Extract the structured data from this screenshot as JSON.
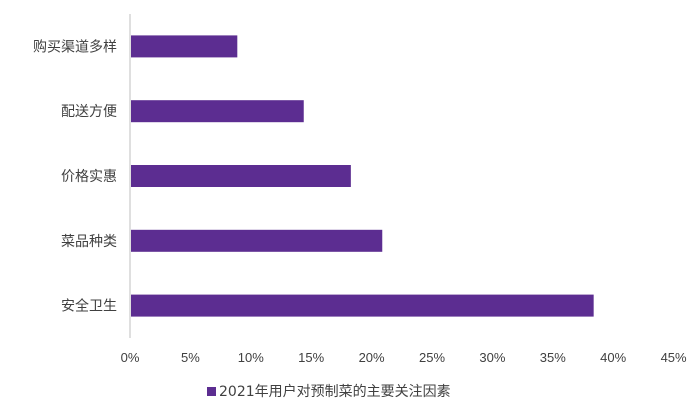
{
  "chart_data": {
    "type": "bar",
    "orientation": "horizontal",
    "categories": [
      "购买渠道多样",
      "配送方便",
      "价格实惠",
      "菜品种类",
      "安全卫生"
    ],
    "series": [
      {
        "name": "2021年用户对预制菜的主要关注因素",
        "values": [
          8.8,
          14.3,
          18.2,
          20.8,
          38.3
        ]
      }
    ],
    "xlim": [
      0,
      45
    ],
    "xticks": [
      "0%",
      "5%",
      "10%",
      "15%",
      "20%",
      "25%",
      "30%",
      "35%",
      "40%",
      "45%"
    ],
    "grid": false,
    "legend_position": "bottom",
    "colors": {
      "bar": "#5c2d91",
      "axis": "#bfbfbf"
    }
  }
}
